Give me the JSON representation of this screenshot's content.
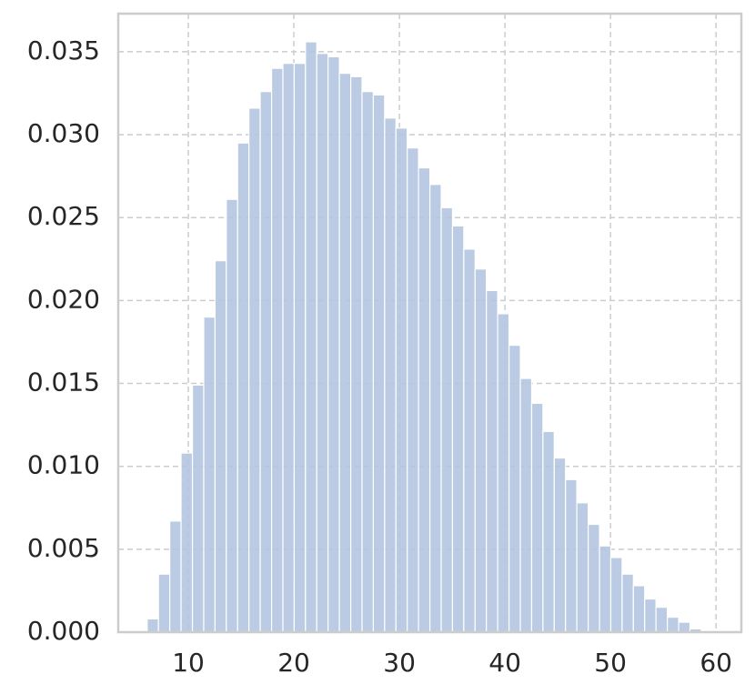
{
  "chart_data": {
    "type": "histogram",
    "color": "#b3c5e0",
    "grid": true,
    "bins": [
      6.1,
      7.17,
      8.24,
      9.31,
      10.39,
      11.46,
      12.53,
      13.6,
      14.67,
      15.74,
      16.81,
      17.89,
      18.96,
      20.03,
      21.1,
      22.17,
      23.24,
      24.31,
      25.39,
      26.46,
      27.53,
      28.6,
      29.67,
      30.74,
      31.81,
      32.89,
      33.96,
      35.03,
      36.1,
      37.17,
      38.24,
      39.31,
      40.39,
      41.46,
      42.53,
      43.6,
      44.67,
      45.74,
      46.81,
      47.89,
      48.96,
      50.03,
      51.1,
      52.17,
      53.24,
      54.31,
      55.39,
      56.46,
      57.53,
      58.6
    ],
    "values": [
      0.0008,
      0.0035,
      0.0067,
      0.0108,
      0.0149,
      0.019,
      0.0224,
      0.0261,
      0.0295,
      0.0316,
      0.0326,
      0.034,
      0.0343,
      0.0343,
      0.0356,
      0.0349,
      0.0347,
      0.0337,
      0.0335,
      0.0326,
      0.0324,
      0.031,
      0.0304,
      0.0292,
      0.028,
      0.027,
      0.0256,
      0.0245,
      0.0231,
      0.0219,
      0.0206,
      0.0192,
      0.0173,
      0.0153,
      0.0138,
      0.0121,
      0.0105,
      0.0092,
      0.0078,
      0.0065,
      0.0052,
      0.0045,
      0.0035,
      0.0028,
      0.002,
      0.0015,
      0.0009,
      0.0006,
      0.0002
    ],
    "xlim": [
      3.36,
      62.4
    ],
    "ylim": [
      0,
      0.0373
    ],
    "xticks": [
      10,
      20,
      30,
      40,
      50,
      60
    ],
    "yticks": [
      {
        "value": 0,
        "label": "0.000"
      },
      {
        "value": 0.005,
        "label": "0.005"
      },
      {
        "value": 0.01,
        "label": "0.010"
      },
      {
        "value": 0.015,
        "label": "0.015"
      },
      {
        "value": 0.02,
        "label": "0.020"
      },
      {
        "value": 0.025,
        "label": "0.025"
      },
      {
        "value": 0.03,
        "label": "0.030"
      },
      {
        "value": 0.035,
        "label": "0.035"
      }
    ]
  }
}
